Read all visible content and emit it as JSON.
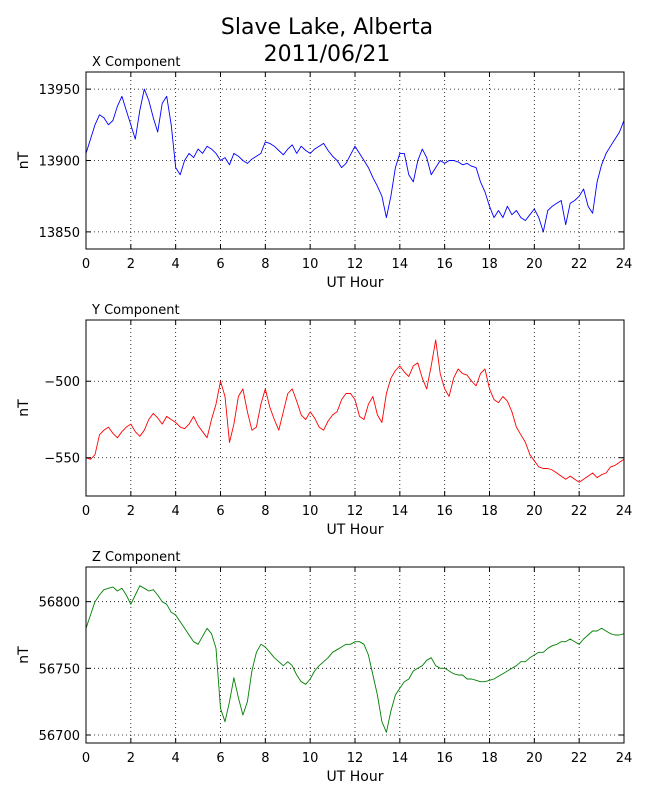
{
  "figure": {
    "title_line1": "Slave Lake, Alberta",
    "title_line2": "2011/06/21"
  },
  "chart_data": [
    {
      "type": "line",
      "panel_title": "X Component",
      "title": "X Component",
      "xlabel": "UT Hour",
      "ylabel": "nT",
      "xlim": [
        0,
        24
      ],
      "ylim": [
        13838,
        13962
      ],
      "xticks": [
        0,
        2,
        4,
        6,
        8,
        10,
        12,
        14,
        16,
        18,
        20,
        22,
        24
      ],
      "yticks": [
        13850,
        13900,
        13950
      ],
      "grid": true,
      "color": "#0000ff",
      "x": [
        0,
        0.2,
        0.4,
        0.6,
        0.8,
        1.0,
        1.2,
        1.4,
        1.6,
        1.8,
        2.0,
        2.2,
        2.4,
        2.6,
        2.8,
        3.0,
        3.2,
        3.4,
        3.6,
        3.8,
        4.0,
        4.2,
        4.4,
        4.6,
        4.8,
        5.0,
        5.2,
        5.4,
        5.6,
        5.8,
        6.0,
        6.2,
        6.4,
        6.6,
        6.8,
        7.0,
        7.2,
        7.4,
        7.6,
        7.8,
        8.0,
        8.2,
        8.4,
        8.6,
        8.8,
        9.0,
        9.2,
        9.4,
        9.6,
        9.8,
        10.0,
        10.2,
        10.4,
        10.6,
        10.8,
        11.0,
        11.2,
        11.4,
        11.6,
        11.8,
        12.0,
        12.2,
        12.4,
        12.6,
        12.8,
        13.0,
        13.2,
        13.4,
        13.6,
        13.8,
        14.0,
        14.2,
        14.4,
        14.6,
        14.8,
        15.0,
        15.2,
        15.4,
        15.6,
        15.8,
        16.0,
        16.2,
        16.4,
        16.6,
        16.8,
        17.0,
        17.2,
        17.4,
        17.6,
        17.8,
        18.0,
        18.2,
        18.4,
        18.6,
        18.8,
        19.0,
        19.2,
        19.4,
        19.6,
        19.8,
        20.0,
        20.2,
        20.4,
        20.6,
        20.8,
        21.0,
        21.2,
        21.4,
        21.6,
        21.8,
        22.0,
        22.2,
        22.4,
        22.6,
        22.8,
        23.0,
        23.2,
        23.4,
        23.6,
        23.8,
        24.0
      ],
      "y": [
        13905,
        13915,
        13925,
        13932,
        13930,
        13925,
        13928,
        13938,
        13945,
        13935,
        13925,
        13915,
        13935,
        13950,
        13942,
        13930,
        13920,
        13940,
        13945,
        13925,
        13895,
        13890,
        13900,
        13905,
        13902,
        13908,
        13905,
        13910,
        13908,
        13905,
        13900,
        13902,
        13897,
        13905,
        13903,
        13900,
        13898,
        13901,
        13903,
        13905,
        13913,
        13912,
        13910,
        13907,
        13904,
        13908,
        13911,
        13905,
        13910,
        13907,
        13905,
        13908,
        13910,
        13912,
        13907,
        13903,
        13900,
        13895,
        13898,
        13904,
        13910,
        13905,
        13900,
        13895,
        13888,
        13882,
        13875,
        13860,
        13875,
        13895,
        13905,
        13905,
        13890,
        13885,
        13900,
        13908,
        13902,
        13890,
        13895,
        13900,
        13898,
        13900,
        13900,
        13899,
        13897,
        13898,
        13896,
        13895,
        13885,
        13878,
        13868,
        13860,
        13865,
        13860,
        13868,
        13862,
        13865,
        13860,
        13858,
        13862,
        13866,
        13860,
        13850,
        13865,
        13868,
        13870,
        13872,
        13855,
        13870,
        13872,
        13875,
        13880,
        13868,
        13863,
        13885,
        13897,
        13905,
        13910,
        13915,
        13920,
        13928
      ]
    },
    {
      "type": "line",
      "panel_title": "Y Component",
      "title": "Y Component",
      "xlabel": "UT Hour",
      "ylabel": "nT",
      "xlim": [
        0,
        24
      ],
      "ylim": [
        -575,
        -460
      ],
      "xticks": [
        0,
        2,
        4,
        6,
        8,
        10,
        12,
        14,
        16,
        18,
        20,
        22,
        24
      ],
      "yticks": [
        -500,
        -550
      ],
      "grid": true,
      "color": "#ff0000",
      "x": [
        0,
        0.2,
        0.4,
        0.6,
        0.8,
        1.0,
        1.2,
        1.4,
        1.6,
        1.8,
        2.0,
        2.2,
        2.4,
        2.6,
        2.8,
        3.0,
        3.2,
        3.4,
        3.6,
        3.8,
        4.0,
        4.2,
        4.4,
        4.6,
        4.8,
        5.0,
        5.2,
        5.4,
        5.6,
        5.8,
        6.0,
        6.2,
        6.4,
        6.6,
        6.8,
        7.0,
        7.2,
        7.4,
        7.6,
        7.8,
        8.0,
        8.2,
        8.4,
        8.6,
        8.8,
        9.0,
        9.2,
        9.4,
        9.6,
        9.8,
        10.0,
        10.2,
        10.4,
        10.6,
        10.8,
        11.0,
        11.2,
        11.4,
        11.6,
        11.8,
        12.0,
        12.2,
        12.4,
        12.6,
        12.8,
        13.0,
        13.2,
        13.4,
        13.6,
        13.8,
        14.0,
        14.2,
        14.4,
        14.6,
        14.8,
        15.0,
        15.2,
        15.4,
        15.6,
        15.8,
        16.0,
        16.2,
        16.4,
        16.6,
        16.8,
        17.0,
        17.2,
        17.4,
        17.6,
        17.8,
        18.0,
        18.2,
        18.4,
        18.6,
        18.8,
        19.0,
        19.2,
        19.4,
        19.6,
        19.8,
        20.0,
        20.2,
        20.4,
        20.6,
        20.8,
        21.0,
        21.2,
        21.4,
        21.6,
        21.8,
        22.0,
        22.2,
        22.4,
        22.6,
        22.8,
        23.0,
        23.2,
        23.4,
        23.6,
        23.8,
        24.0
      ],
      "y": [
        -550,
        -551,
        -548,
        -535,
        -532,
        -530,
        -534,
        -537,
        -533,
        -530,
        -528,
        -533,
        -536,
        -532,
        -525,
        -521,
        -524,
        -528,
        -523,
        -525,
        -527,
        -530,
        -531,
        -528,
        -523,
        -529,
        -533,
        -537,
        -525,
        -515,
        -500,
        -510,
        -540,
        -528,
        -510,
        -505,
        -520,
        -532,
        -530,
        -515,
        -505,
        -517,
        -525,
        -532,
        -520,
        -508,
        -505,
        -513,
        -522,
        -525,
        -520,
        -524,
        -530,
        -532,
        -526,
        -522,
        -520,
        -512,
        -508,
        -508,
        -512,
        -523,
        -525,
        -515,
        -510,
        -522,
        -527,
        -508,
        -498,
        -493,
        -490,
        -494,
        -497,
        -490,
        -488,
        -498,
        -505,
        -490,
        -473,
        -495,
        -505,
        -510,
        -498,
        -492,
        -495,
        -496,
        -500,
        -503,
        -495,
        -492,
        -505,
        -512,
        -514,
        -510,
        -513,
        -520,
        -530,
        -535,
        -540,
        -548,
        -552,
        -556,
        -557,
        -557,
        -558,
        -560,
        -562,
        -564,
        -562,
        -564,
        -566,
        -564,
        -562,
        -560,
        -563,
        -561,
        -560,
        -556,
        -555,
        -553,
        -551
      ]
    },
    {
      "type": "line",
      "panel_title": "Z Component",
      "title": "Z Component",
      "xlabel": "UT Hour",
      "ylabel": "nT",
      "xlim": [
        0,
        24
      ],
      "ylim": [
        56694,
        56826
      ],
      "xticks": [
        0,
        2,
        4,
        6,
        8,
        10,
        12,
        14,
        16,
        18,
        20,
        22,
        24
      ],
      "yticks": [
        56700,
        56750,
        56800
      ],
      "grid": true,
      "color": "#008000",
      "x": [
        0,
        0.2,
        0.4,
        0.6,
        0.8,
        1.0,
        1.2,
        1.4,
        1.6,
        1.8,
        2.0,
        2.2,
        2.4,
        2.6,
        2.8,
        3.0,
        3.2,
        3.4,
        3.6,
        3.8,
        4.0,
        4.2,
        4.4,
        4.6,
        4.8,
        5.0,
        5.2,
        5.4,
        5.6,
        5.8,
        6.0,
        6.2,
        6.4,
        6.6,
        6.8,
        7.0,
        7.2,
        7.4,
        7.6,
        7.8,
        8.0,
        8.2,
        8.4,
        8.6,
        8.8,
        9.0,
        9.2,
        9.4,
        9.6,
        9.8,
        10.0,
        10.2,
        10.4,
        10.6,
        10.8,
        11.0,
        11.2,
        11.4,
        11.6,
        11.8,
        12.0,
        12.2,
        12.4,
        12.6,
        12.8,
        13.0,
        13.2,
        13.4,
        13.6,
        13.8,
        14.0,
        14.2,
        14.4,
        14.6,
        14.8,
        15.0,
        15.2,
        15.4,
        15.6,
        15.8,
        16.0,
        16.2,
        16.4,
        16.6,
        16.8,
        17.0,
        17.2,
        17.4,
        17.6,
        17.8,
        18.0,
        18.2,
        18.4,
        18.6,
        18.8,
        19.0,
        19.2,
        19.4,
        19.6,
        19.8,
        20.0,
        20.2,
        20.4,
        20.6,
        20.8,
        21.0,
        21.2,
        21.4,
        21.6,
        21.8,
        22.0,
        22.2,
        22.4,
        22.6,
        22.8,
        23.0,
        23.2,
        23.4,
        23.6,
        23.8,
        24.0
      ],
      "y": [
        56780,
        56790,
        56800,
        56805,
        56809,
        56810,
        56811,
        56808,
        56810,
        56805,
        56798,
        56805,
        56812,
        56810,
        56808,
        56809,
        56805,
        56800,
        56798,
        56792,
        56790,
        56785,
        56780,
        56775,
        56770,
        56768,
        56774,
        56780,
        56776,
        56765,
        56720,
        56710,
        56725,
        56743,
        56728,
        56715,
        56725,
        56748,
        56762,
        56768,
        56766,
        56762,
        56758,
        56755,
        56752,
        56755,
        56752,
        56745,
        56740,
        56738,
        56742,
        56748,
        56752,
        56755,
        56758,
        56762,
        56764,
        56766,
        56768,
        56768,
        56770,
        56770,
        56768,
        56760,
        56745,
        56730,
        56710,
        56702,
        56718,
        56730,
        56735,
        56740,
        56742,
        56748,
        56750,
        56752,
        56756,
        56758,
        56752,
        56750,
        56750,
        56748,
        56746,
        56745,
        56745,
        56742,
        56742,
        56741,
        56740,
        56740,
        56741,
        56742,
        56744,
        56746,
        56748,
        56750,
        56752,
        56755,
        56755,
        56758,
        56760,
        56762,
        56762,
        56765,
        56767,
        56768,
        56770,
        56770,
        56772,
        56770,
        56768,
        56772,
        56775,
        56778,
        56778,
        56780,
        56778,
        56776,
        56775,
        56775,
        56776
      ]
    }
  ]
}
